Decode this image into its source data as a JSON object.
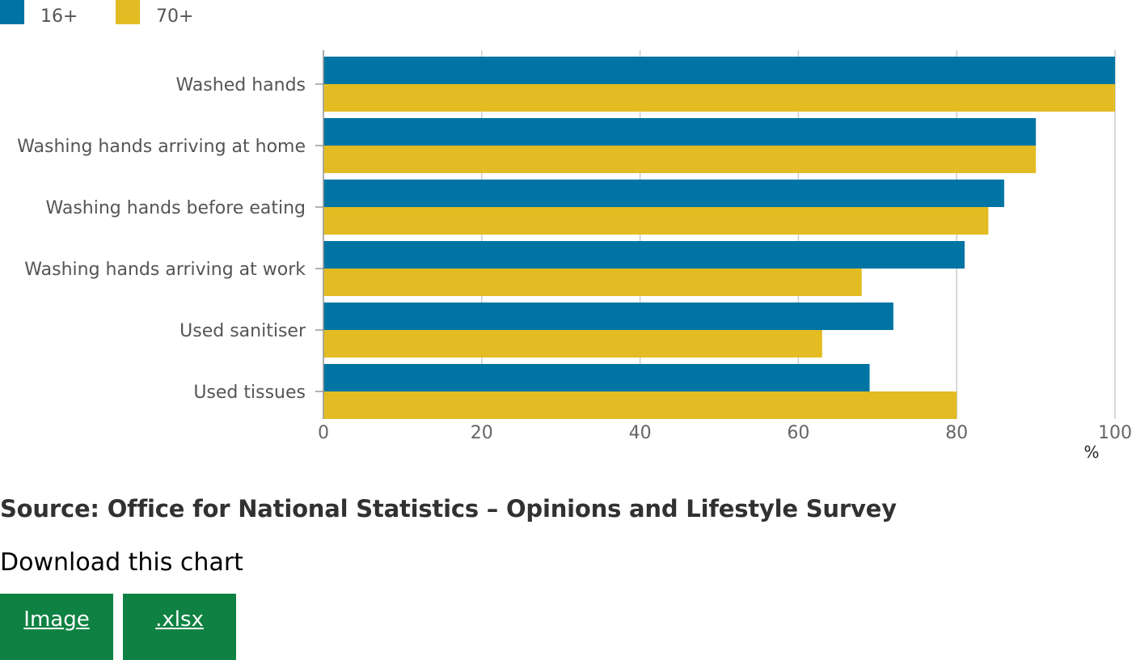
{
  "legend": [
    {
      "label": "16+",
      "color": "#0075a3"
    },
    {
      "label": "70+",
      "color": "#e2bc22"
    }
  ],
  "chart_data": {
    "type": "bar",
    "orientation": "horizontal",
    "categories": [
      "Washed hands",
      "Washing hands arriving at home",
      "Washing hands before eating",
      "Washing hands arriving at work",
      "Used sanitiser",
      "Used tissues"
    ],
    "series": [
      {
        "name": "16+",
        "color": "#0075a3",
        "values": [
          100,
          90,
          86,
          81,
          72,
          69
        ]
      },
      {
        "name": "70+",
        "color": "#e2bc22",
        "values": [
          100,
          90,
          84,
          68,
          63,
          80
        ]
      }
    ],
    "xlim": [
      0,
      100
    ],
    "xticks": [
      0,
      20,
      40,
      60,
      80,
      100
    ],
    "xlabel": "%",
    "grid": true,
    "legend_position": "top-left"
  },
  "source": "Source: Office for National Statistics – Opinions and Lifestyle Survey",
  "download": {
    "title": "Download this chart",
    "image_label": "Image",
    "xlsx_label": ".xlsx"
  }
}
